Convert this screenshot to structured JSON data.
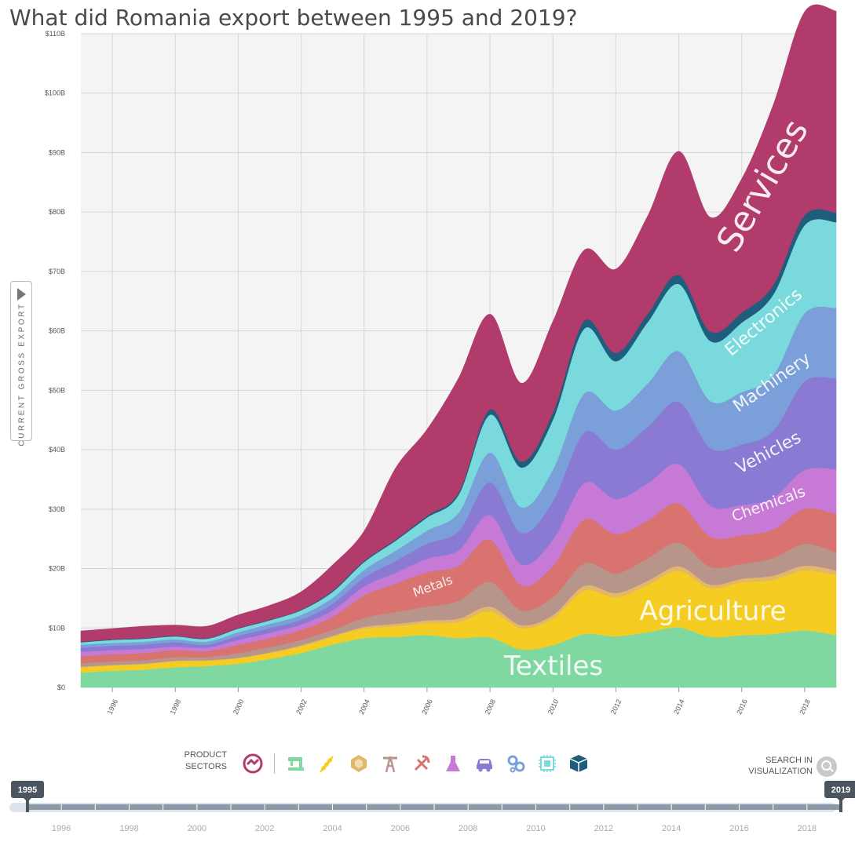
{
  "title": "What did Romania export between 1995 and 2019?",
  "y_axis_tab": "CURRENT GROSS EXPORT",
  "chart_data": {
    "type": "area",
    "stacked": true,
    "title": "What did Romania export between 1995 and 2019?",
    "ylabel": "CURRENT GROSS EXPORT",
    "xlim": [
      1995,
      2019
    ],
    "ylim": [
      0,
      110
    ],
    "grid": true,
    "x": [
      1995,
      1996,
      1997,
      1998,
      1999,
      2000,
      2001,
      2002,
      2003,
      2004,
      2005,
      2006,
      2007,
      2008,
      2009,
      2010,
      2011,
      2012,
      2013,
      2014,
      2015,
      2016,
      2017,
      2018,
      2019
    ],
    "y_ticks": [
      "$0",
      "$10B",
      "$20B",
      "$30B",
      "$40B",
      "$50B",
      "$60B",
      "$70B",
      "$80B",
      "$90B",
      "$100B",
      "$110B"
    ],
    "y_tick_values": [
      0,
      10,
      20,
      30,
      40,
      50,
      60,
      70,
      80,
      90,
      100,
      110
    ],
    "x_ticks": [
      "1996",
      "1998",
      "2000",
      "2002",
      "2004",
      "2006",
      "2008",
      "2010",
      "2012",
      "2014",
      "2016",
      "2018"
    ],
    "x_tick_values": [
      1996,
      1998,
      2000,
      2002,
      2004,
      2006,
      2008,
      2010,
      2012,
      2014,
      2016,
      2018
    ],
    "series": [
      {
        "name": "Textiles",
        "label": "Textiles",
        "color": "#7fd8a0",
        "values": [
          2.5,
          2.8,
          3.0,
          3.4,
          3.6,
          4.0,
          4.8,
          5.8,
          7.2,
          8.3,
          8.5,
          8.8,
          8.3,
          8.4,
          6.4,
          7.1,
          9.0,
          8.6,
          9.3,
          10.1,
          8.5,
          8.8,
          9.0,
          9.6,
          8.8
        ]
      },
      {
        "name": "Agriculture",
        "label": "Agriculture",
        "color": "#f5cd22",
        "values": [
          0.9,
          0.9,
          0.9,
          1.0,
          0.9,
          0.9,
          1.0,
          1.1,
          1.3,
          1.6,
          1.8,
          2.0,
          2.7,
          4.4,
          3.6,
          4.5,
          7.3,
          6.6,
          7.9,
          9.5,
          8.2,
          8.9,
          9.1,
          10.1,
          10.1
        ]
      },
      {
        "name": "Stone",
        "color": "#e3b76a",
        "values": [
          0.1,
          0.1,
          0.1,
          0.1,
          0.1,
          0.1,
          0.1,
          0.2,
          0.2,
          0.3,
          0.4,
          0.5,
          0.6,
          0.8,
          0.5,
          0.6,
          0.8,
          0.7,
          0.7,
          0.8,
          0.6,
          0.6,
          0.7,
          0.8,
          0.8
        ]
      },
      {
        "name": "Minerals",
        "color": "#b7958a",
        "values": [
          0.6,
          0.6,
          0.6,
          0.6,
          0.5,
          0.8,
          0.9,
          0.9,
          1.0,
          1.5,
          2.0,
          2.3,
          3.0,
          4.2,
          2.5,
          3.0,
          3.8,
          3.3,
          3.8,
          4.0,
          3.0,
          2.5,
          3.0,
          3.7,
          3.0
        ]
      },
      {
        "name": "Metals",
        "label": "Metals",
        "color": "#d97370",
        "values": [
          1.2,
          1.2,
          1.2,
          1.2,
          1.0,
          1.4,
          1.5,
          1.7,
          2.2,
          3.8,
          4.8,
          5.8,
          5.9,
          7.1,
          4.2,
          5.3,
          7.4,
          6.6,
          6.4,
          6.6,
          5.1,
          4.8,
          4.8,
          5.9,
          6.5
        ]
      },
      {
        "name": "Chemicals",
        "label": "Chemicals",
        "color": "#c67ad6",
        "values": [
          0.7,
          0.7,
          0.7,
          0.6,
          0.6,
          0.8,
          0.9,
          0.9,
          1.1,
          1.5,
          1.8,
          2.3,
          2.6,
          4.1,
          3.5,
          4.4,
          6.1,
          5.9,
          6.2,
          6.6,
          5.2,
          5.1,
          5.3,
          6.5,
          7.5
        ]
      },
      {
        "name": "Vehicles",
        "label": "Vehicles",
        "color": "#8a7ad4",
        "values": [
          0.7,
          0.7,
          0.7,
          0.7,
          0.5,
          0.7,
          0.8,
          0.8,
          1.1,
          1.5,
          2.0,
          2.5,
          3.2,
          5.5,
          5.3,
          6.5,
          8.5,
          8.3,
          9.5,
          10.5,
          9.7,
          10.2,
          11.3,
          14.9,
          15.3
        ]
      },
      {
        "name": "Machinery",
        "label": "Machinery",
        "color": "#7b9fd9",
        "values": [
          0.5,
          0.5,
          0.5,
          0.5,
          0.5,
          0.6,
          0.7,
          0.8,
          1.0,
          1.3,
          1.7,
          2.2,
          3.1,
          5.0,
          4.3,
          5.3,
          6.6,
          6.6,
          7.3,
          8.5,
          7.9,
          8.8,
          9.3,
          11.5,
          11.9
        ]
      },
      {
        "name": "Electronics",
        "label": "Electronics",
        "color": "#7ad9dc",
        "values": [
          0.4,
          0.5,
          0.5,
          0.5,
          0.5,
          0.6,
          0.6,
          0.8,
          1.0,
          1.3,
          1.7,
          2.2,
          3.0,
          6.4,
          6.7,
          8.4,
          10.9,
          8.3,
          10.3,
          11.3,
          10.1,
          11.7,
          13.6,
          14.8,
          14.4
        ]
      },
      {
        "name": "Other",
        "color": "#1f5d7d",
        "values": [
          0.1,
          0.1,
          0.1,
          0.1,
          0.1,
          0.1,
          0.1,
          0.1,
          0.2,
          0.2,
          0.2,
          0.3,
          0.4,
          0.9,
          1.0,
          1.2,
          1.3,
          1.4,
          1.4,
          1.5,
          1.6,
          1.7,
          1.6,
          1.7,
          1.6
        ]
      },
      {
        "name": "Services",
        "label": "Services",
        "color": "#b13b6b",
        "values": [
          1.8,
          1.8,
          2.0,
          1.8,
          2.0,
          2.2,
          2.4,
          3.0,
          4.3,
          5.0,
          12.0,
          14.5,
          19.2,
          16.0,
          13.2,
          15.3,
          11.9,
          14.1,
          16.4,
          20.8,
          19.2,
          22.5,
          30.3,
          34.2,
          33.9
        ]
      }
    ]
  },
  "sectors_label": [
    "PRODUCT",
    "SECTORS"
  ],
  "sector_icons": [
    {
      "name": "services-icon",
      "color": "#b13b6b"
    },
    {
      "name": "textiles-icon",
      "color": "#7fd8a0"
    },
    {
      "name": "agriculture-icon",
      "color": "#f5cd22"
    },
    {
      "name": "stone-icon",
      "color": "#e3b76a"
    },
    {
      "name": "minerals-icon",
      "color": "#b7958a"
    },
    {
      "name": "metals-icon",
      "color": "#d97370"
    },
    {
      "name": "chemicals-icon",
      "color": "#c67ad6"
    },
    {
      "name": "vehicles-icon",
      "color": "#8a7ad4"
    },
    {
      "name": "machinery-icon",
      "color": "#7b9fd9"
    },
    {
      "name": "electronics-icon",
      "color": "#7ad9dc"
    },
    {
      "name": "other-icon",
      "color": "#1f5d7d"
    }
  ],
  "search_label": [
    "SEARCH IN",
    "VISUALIZATION"
  ],
  "timeline": {
    "start": "1995",
    "end": "2019",
    "ticks": [
      "1996",
      "1998",
      "2000",
      "2002",
      "2004",
      "2006",
      "2008",
      "2010",
      "2012",
      "2014",
      "2016",
      "2018"
    ],
    "min": 1995,
    "max": 2019
  }
}
